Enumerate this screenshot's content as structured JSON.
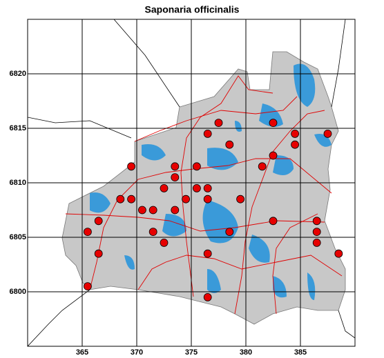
{
  "chart_data": {
    "type": "scatter",
    "title": "Saponaria officinalis",
    "x": [
      376.5,
      377.5,
      378.5,
      382.5,
      384.5,
      384.5,
      387.5,
      382.5,
      369.5,
      373.5,
      375.5,
      381.5,
      373.5,
      372.5,
      375.5,
      376.5,
      368.5,
      369.5,
      374.5,
      376.5,
      379.5,
      370.5,
      371.5,
      373.5,
      366.5,
      382.5,
      386.5,
      365.5,
      371.5,
      378.5,
      386.5,
      372.5,
      386.5,
      366.5,
      376.5,
      388.5,
      365.5,
      376.5
    ],
    "values": [
      6814.5,
      6815.5,
      6813.5,
      6815.5,
      6814.5,
      6813.5,
      6814.5,
      6812.5,
      6811.5,
      6811.5,
      6811.5,
      6811.5,
      6810.5,
      6809.5,
      6809.5,
      6809.5,
      6808.5,
      6808.5,
      6808.5,
      6808.5,
      6808.5,
      6807.5,
      6807.5,
      6807.5,
      6806.5,
      6806.5,
      6806.5,
      6805.5,
      6805.5,
      6805.5,
      6805.5,
      6804.5,
      6804.5,
      6803.5,
      6803.5,
      6803.5,
      6800.5,
      6799.5
    ],
    "color": "#e60000",
    "xlim": [
      360,
      390
    ],
    "ylim": [
      6795,
      6825
    ],
    "xticks": [
      365,
      370,
      375,
      380,
      385
    ],
    "yticks": [
      6800,
      6805,
      6810,
      6815,
      6820
    ],
    "grid": true
  }
}
